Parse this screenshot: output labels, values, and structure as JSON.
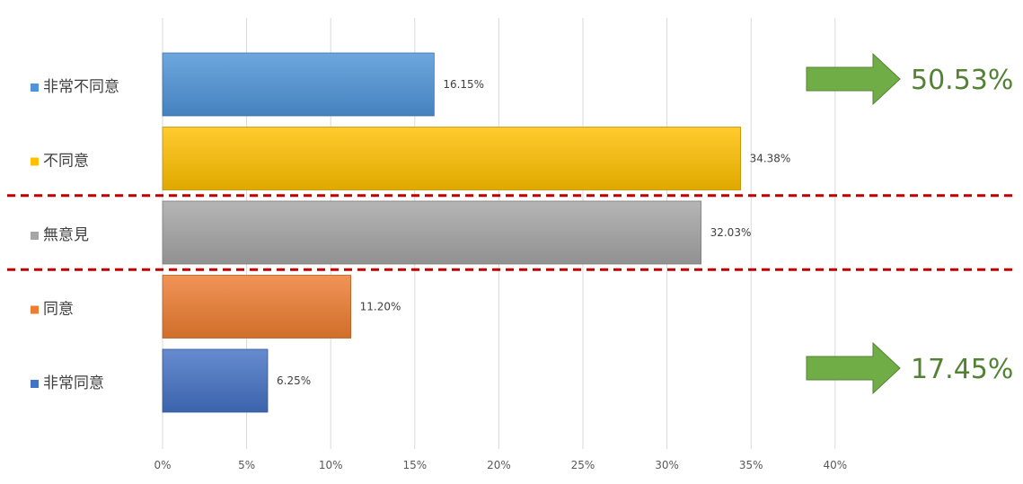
{
  "chart_data": {
    "type": "bar",
    "orientation": "horizontal",
    "categories": [
      "非常不同意",
      "不同意",
      "無意見",
      "同意",
      "非常同意"
    ],
    "values": [
      16.15,
      34.38,
      32.03,
      11.2,
      6.25
    ],
    "data_labels": [
      "16.15%",
      "34.38%",
      "32.03%",
      "11.20%",
      "6.25%"
    ],
    "colors": [
      "#4e94d8",
      "#ffc000",
      "#a5a5a5",
      "#ed7d31",
      "#4472c4"
    ],
    "xlim": [
      0,
      40
    ],
    "x_ticks": [
      0,
      5,
      10,
      15,
      20,
      25,
      30,
      35,
      40
    ],
    "x_tick_labels": [
      "0%",
      "5%",
      "10%",
      "15%",
      "20%",
      "25%",
      "30%",
      "35%",
      "40%"
    ],
    "grid": "vertical",
    "title": "",
    "xlabel": "",
    "ylabel": "",
    "annotations": [
      {
        "text": "50.53%",
        "color": "#548235",
        "applies_to": [
          "非常不同意",
          "不同意"
        ],
        "icon": "right-arrow-icon"
      },
      {
        "text": "17.45%",
        "color": "#548235",
        "applies_to": [
          "同意",
          "非常同意"
        ],
        "icon": "right-arrow-icon"
      }
    ],
    "separator_color": "#c00000"
  }
}
